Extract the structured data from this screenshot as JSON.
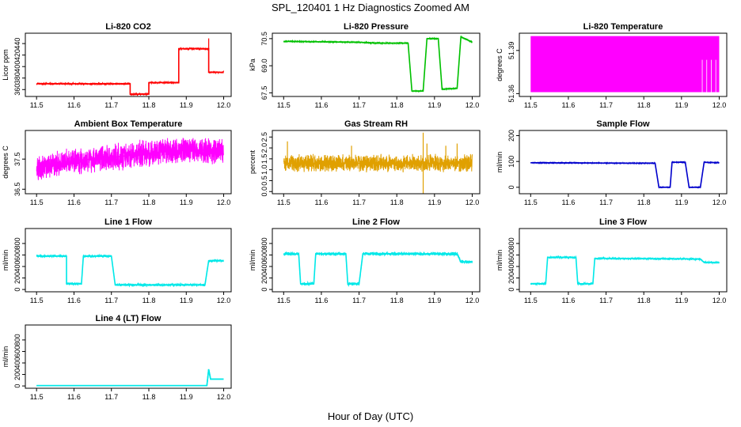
{
  "figure": {
    "title": "SPL_120401  1 Hz Diagnostics Zoomed AM",
    "xlabel": "Hour of Day (UTC)"
  },
  "chart_data": [
    {
      "type": "line",
      "title": "Li-820 CO2",
      "ylabel": "Licor ppm",
      "color": "#ff0000",
      "xlim": [
        11.47,
        12.02
      ],
      "xticks": [
        "11.5",
        "11.6",
        "11.7",
        "11.8",
        "11.9",
        "12.0"
      ],
      "ylim": [
        348,
        458
      ],
      "yticks": [
        "360",
        "380",
        "400",
        "420",
        "440"
      ],
      "x": [
        11.5,
        11.75,
        11.75,
        11.8,
        11.8,
        11.88,
        11.88,
        11.96,
        11.96,
        12.0
      ],
      "y": [
        370,
        370,
        352,
        352,
        372,
        372,
        431,
        431,
        390,
        390
      ],
      "noise": 2,
      "spikes": [
        [
          11.96,
          449
        ]
      ]
    },
    {
      "type": "line",
      "title": "Li-820 Pressure",
      "ylabel": "kPa",
      "color": "#00c000",
      "xlim": [
        11.47,
        12.02
      ],
      "xticks": [
        "11.5",
        "11.6",
        "11.7",
        "11.8",
        "11.9",
        "12.0"
      ],
      "ylim": [
        67.3,
        70.8
      ],
      "yticks": [
        "67.5",
        "69.0",
        "70.5"
      ],
      "x": [
        11.5,
        11.7,
        11.75,
        11.83,
        11.84,
        11.87,
        11.88,
        11.91,
        11.92,
        11.96,
        11.97,
        12.0
      ],
      "y": [
        70.35,
        70.3,
        70.25,
        70.25,
        67.6,
        67.6,
        70.5,
        70.5,
        67.7,
        67.75,
        70.6,
        70.3
      ],
      "noise": 0.04,
      "spikes": []
    },
    {
      "type": "area",
      "title": "Li-820 Temperature",
      "ylabel": "degrees C",
      "color": "#ff00ff",
      "xlim": [
        11.47,
        12.02
      ],
      "xticks": [
        "11.5",
        "11.6",
        "11.7",
        "11.8",
        "11.9",
        "12.0"
      ],
      "ylim": [
        51.358,
        51.402
      ],
      "yticks": [
        "51.36",
        "51.39"
      ],
      "band": {
        "x": [
          11.5,
          12.0
        ],
        "low": 51.361,
        "high": 51.4
      },
      "noise": 0,
      "spikes": []
    },
    {
      "type": "line",
      "title": "Ambient Box Temperature",
      "ylabel": "degrees C",
      "color": "#ff00ff",
      "xlim": [
        11.47,
        12.02
      ],
      "xticks": [
        "11.5",
        "11.6",
        "11.7",
        "11.8",
        "11.9",
        "12.0"
      ],
      "ylim": [
        36.35,
        38.45
      ],
      "yticks": [
        "36.5",
        "37.5"
      ],
      "x": [
        11.5,
        11.6,
        11.7,
        11.8,
        11.9,
        12.0
      ],
      "y": [
        37.2,
        37.45,
        37.55,
        37.7,
        37.8,
        37.8
      ],
      "noise": 0.55,
      "spikes": []
    },
    {
      "type": "line",
      "title": "Gas Stream RH",
      "ylabel": "percent",
      "color": "#e0a000",
      "xlim": [
        11.47,
        12.02
      ],
      "xticks": [
        "11.5",
        "11.6",
        "11.7",
        "11.8",
        "11.9",
        "12.0"
      ],
      "ylim": [
        -0.1,
        2.8
      ],
      "yticks": [
        "0.0",
        "0.5",
        "1.0",
        "1.5",
        "2.0",
        "2.5"
      ],
      "x": [
        11.5,
        12.0
      ],
      "y": [
        1.3,
        1.3
      ],
      "noise": 0.5,
      "spikes": [
        [
          11.51,
          2.3
        ],
        [
          11.68,
          2.1
        ],
        [
          11.87,
          2.7
        ],
        [
          11.87,
          -0.1
        ],
        [
          11.88,
          2.2
        ],
        [
          11.93,
          2.1
        ],
        [
          11.96,
          2.2
        ]
      ]
    },
    {
      "type": "line",
      "title": "Sample Flow",
      "ylabel": "ml/min",
      "color": "#0000cc",
      "xlim": [
        11.47,
        12.02
      ],
      "xticks": [
        "11.5",
        "11.6",
        "11.7",
        "11.8",
        "11.9",
        "12.0"
      ],
      "ylim": [
        -25,
        220
      ],
      "yticks": [
        "0",
        "100",
        "200"
      ],
      "x": [
        11.5,
        11.83,
        11.84,
        11.87,
        11.875,
        11.91,
        11.92,
        11.95,
        11.96,
        12.0
      ],
      "y": [
        95,
        93,
        0,
        0,
        97,
        97,
        0,
        0,
        97,
        95
      ],
      "noise": 2,
      "spikes": []
    },
    {
      "type": "line",
      "title": "Line 1 Flow",
      "ylabel": "ml/min",
      "color": "#00e8e8",
      "xlim": [
        11.47,
        12.02
      ],
      "xticks": [
        "11.5",
        "11.6",
        "11.7",
        "11.8",
        "11.9",
        "12.0"
      ],
      "ylim": [
        -40,
        1060
      ],
      "yticks": [
        "0",
        "200",
        "400",
        "600",
        "800"
      ],
      "x": [
        11.5,
        11.58,
        11.58,
        11.62,
        11.625,
        11.7,
        11.71,
        11.95,
        11.96,
        12.0
      ],
      "y": [
        580,
        580,
        100,
        100,
        580,
        580,
        80,
        80,
        500,
        500
      ],
      "noise": 30,
      "spikes": []
    },
    {
      "type": "line",
      "title": "Line 2 Flow",
      "ylabel": "ml/min",
      "color": "#00e8e8",
      "xlim": [
        11.47,
        12.02
      ],
      "xticks": [
        "11.5",
        "11.6",
        "11.7",
        "11.8",
        "11.9",
        "12.0"
      ],
      "ylim": [
        -40,
        1060
      ],
      "yticks": [
        "0",
        "200",
        "400",
        "600",
        "800"
      ],
      "x": [
        11.5,
        11.54,
        11.545,
        11.58,
        11.585,
        11.665,
        11.67,
        11.7,
        11.71,
        11.96,
        11.97,
        12.0
      ],
      "y": [
        620,
        620,
        100,
        100,
        620,
        620,
        100,
        100,
        620,
        620,
        480,
        480
      ],
      "noise": 40,
      "spikes": []
    },
    {
      "type": "line",
      "title": "Line 3 Flow",
      "ylabel": "ml/min",
      "color": "#00e8e8",
      "xlim": [
        11.47,
        12.02
      ],
      "xticks": [
        "11.5",
        "11.6",
        "11.7",
        "11.8",
        "11.9",
        "12.0"
      ],
      "ylim": [
        -40,
        1060
      ],
      "yticks": [
        "0",
        "200",
        "400",
        "600",
        "800"
      ],
      "x": [
        11.5,
        11.54,
        11.545,
        11.62,
        11.625,
        11.665,
        11.67,
        11.95,
        11.96,
        12.0
      ],
      "y": [
        100,
        100,
        560,
        560,
        100,
        100,
        540,
        530,
        470,
        470
      ],
      "noise": 25,
      "spikes": []
    },
    {
      "type": "line",
      "title": "Line 4 (LT) Flow",
      "ylabel": "ml/min",
      "color": "#00e8e8",
      "xlim": [
        11.47,
        12.02
      ],
      "xticks": [
        "11.5",
        "11.6",
        "11.7",
        "11.8",
        "11.9",
        "12.0"
      ],
      "ylim": [
        -40,
        1060
      ],
      "yticks": [
        "0",
        "200",
        "400",
        "600",
        "800"
      ],
      "x": [
        11.5,
        11.955,
        11.96,
        11.965,
        12.0
      ],
      "y": [
        5,
        5,
        290,
        120,
        120
      ],
      "noise": 0,
      "spikes": []
    }
  ]
}
